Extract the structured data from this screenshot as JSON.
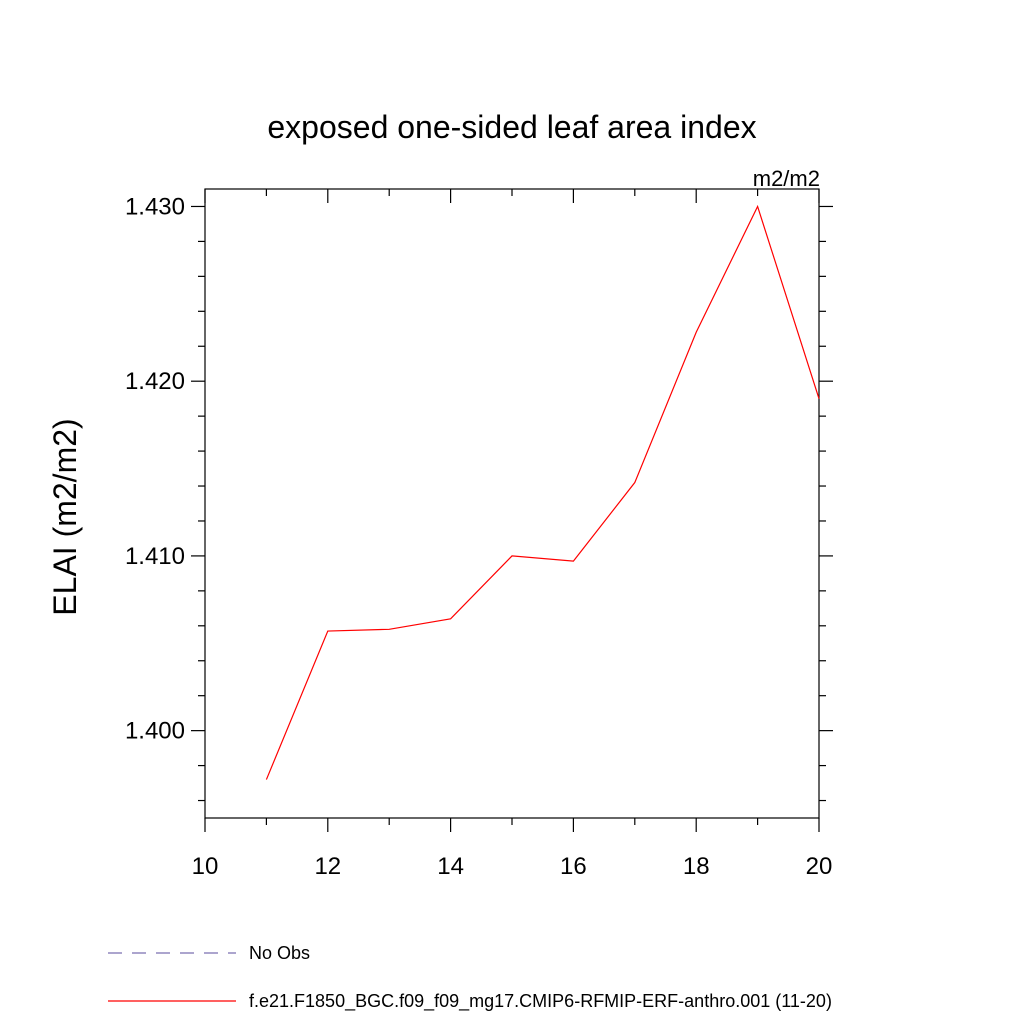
{
  "chart_data": {
    "type": "line",
    "title": "exposed one-sided leaf area index",
    "units_label": "m2/m2",
    "ylabel": "ELAI  (m2/m2)",
    "xlabel": "",
    "xlim": [
      10,
      20
    ],
    "ylim": [
      1.395,
      1.431
    ],
    "x_ticks": [
      10,
      12,
      14,
      16,
      18,
      20
    ],
    "x_tick_labels": [
      "10",
      "12",
      "14",
      "16",
      "18",
      "20"
    ],
    "x_minor_ticks": [
      11,
      13,
      15,
      17,
      19
    ],
    "y_ticks": [
      1.4,
      1.41,
      1.42,
      1.43
    ],
    "y_tick_labels": [
      "1.400",
      "1.410",
      "1.420",
      "1.430"
    ],
    "y_minor_ticks": [
      1.396,
      1.398,
      1.402,
      1.404,
      1.406,
      1.408,
      1.412,
      1.414,
      1.416,
      1.418,
      1.422,
      1.424,
      1.426,
      1.428
    ],
    "grid": false,
    "series": [
      {
        "name": "f.e21.F1850_BGC.f09_f09_mg17.CMIP6-RFMIP-ERF-anthro.001 (11-20)",
        "color": "#ff0000",
        "dash": "solid",
        "x": [
          11,
          12,
          13,
          14,
          15,
          16,
          17,
          18,
          19,
          20
        ],
        "values": [
          1.3972,
          1.4057,
          1.4058,
          1.4064,
          1.41,
          1.4097,
          1.4142,
          1.4228,
          1.43,
          1.419
        ]
      }
    ],
    "legend": {
      "placement": "bottom-left",
      "entries": [
        {
          "label": "No Obs",
          "color": "#7b6fb0",
          "dash": "dashed"
        },
        {
          "label": "f.e21.F1850_BGC.f09_f09_mg17.CMIP6-RFMIP-ERF-anthro.001 (11-20)",
          "color": "#ff0000",
          "dash": "solid"
        }
      ]
    }
  }
}
